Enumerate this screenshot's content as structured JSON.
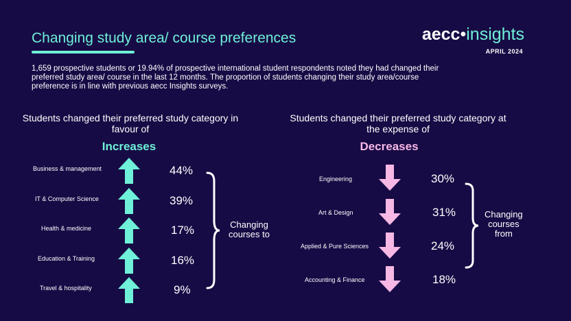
{
  "header": {
    "title": "Changing study area/ course preferences",
    "logo_primary": "aecc",
    "logo_secondary": "insights",
    "date": "APRIL 2024"
  },
  "intro": "1,659 prospective students or 19.94% of prospective international student respondents noted they had changed their preferred study area/ course in the last 12 months. The proportion of students changing their study area/course preference is in line with previous aecc Insights surveys.",
  "increases": {
    "heading": "Students changed their preferred study category in favour of",
    "label": "Increases",
    "side_label_line1": "Changing",
    "side_label_line2": "courses to",
    "accent_color": "#6ff0d8",
    "items": [
      {
        "name": "Business & management",
        "pct": "44%"
      },
      {
        "name": "IT & Computer Science",
        "pct": "39%"
      },
      {
        "name": "Health & medicine",
        "pct": "17%"
      },
      {
        "name": "Education & Training",
        "pct": "16%"
      },
      {
        "name": "Travel & hospitality",
        "pct": "9%"
      }
    ]
  },
  "decreases": {
    "heading": "Students changed their preferred study category at the expense of",
    "label": "Decreases",
    "side_label_line1": "Changing",
    "side_label_line2": "courses",
    "side_label_line3": "from",
    "accent_color": "#f7b8e6",
    "items": [
      {
        "name": "Engineering",
        "pct": "30%"
      },
      {
        "name": "Art & Design",
        "pct": "31%"
      },
      {
        "name": "Applied & Pure Sciences",
        "pct": "24%"
      },
      {
        "name": "Accounting & Finance",
        "pct": "18%"
      }
    ]
  }
}
